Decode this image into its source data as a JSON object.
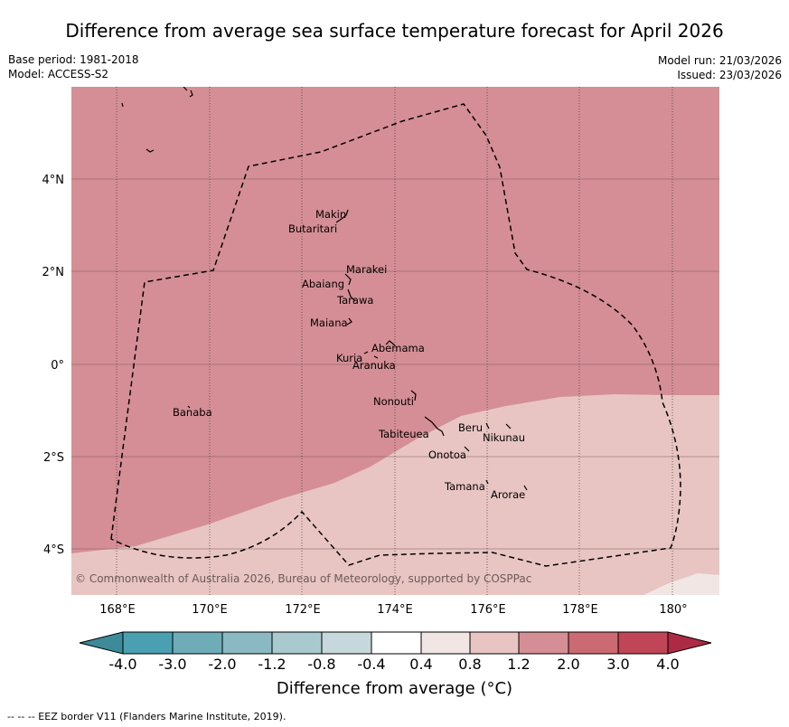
{
  "title": "Difference from average sea surface temperature forecast for April 2026",
  "meta_left": {
    "base_period": "Base period: 1981-2018",
    "model": "Model: ACCESS-S2"
  },
  "meta_right": {
    "model_run": "Model run: 21/03/2026",
    "issued": "Issued: 23/03/2026"
  },
  "map": {
    "lon_ticks": [
      "168°E",
      "170°E",
      "172°E",
      "174°E",
      "176°E",
      "178°E",
      "180°"
    ],
    "lat_ticks": [
      "4°N",
      "2°N",
      "0°",
      "2°S",
      "4°S"
    ],
    "islands": [
      "Makin",
      "Butaritari",
      "Marakei",
      "Abaiang",
      "Tarawa",
      "Maiana",
      "Abemama",
      "Kuria",
      "Aranuka",
      "Nonouti",
      "Banaba",
      "Tabiteuea",
      "Beru",
      "Nikunau",
      "Onotoa",
      "Tamana",
      "Arorae"
    ],
    "copyright": "© Commonwealth of Australia 2026, Bureau of Meteorology, supported by COSPPac",
    "warm_color": "#d58e95",
    "neutral_color": "#e8c5c2",
    "light_color": "#f2e6e5"
  },
  "colorbar": {
    "labels": [
      "-4.0",
      "-3.0",
      "-2.0",
      "-1.2",
      "-0.8",
      "-0.4",
      "0.4",
      "0.8",
      "1.2",
      "2.0",
      "3.0",
      "4.0"
    ],
    "colors": [
      "#3e8a98",
      "#4aa0b0",
      "#6eacb8",
      "#8ab9c3",
      "#a8c9ce",
      "#c7d8dc",
      "#ffffff",
      "#f2e6e5",
      "#e8c5c2",
      "#d58e95",
      "#cc6a73",
      "#c04556",
      "#ad2a45"
    ],
    "title": "Difference from average (°C)"
  },
  "footer": "-- -- -- EEZ border V11 (Flanders Marine Institute, 2019)."
}
